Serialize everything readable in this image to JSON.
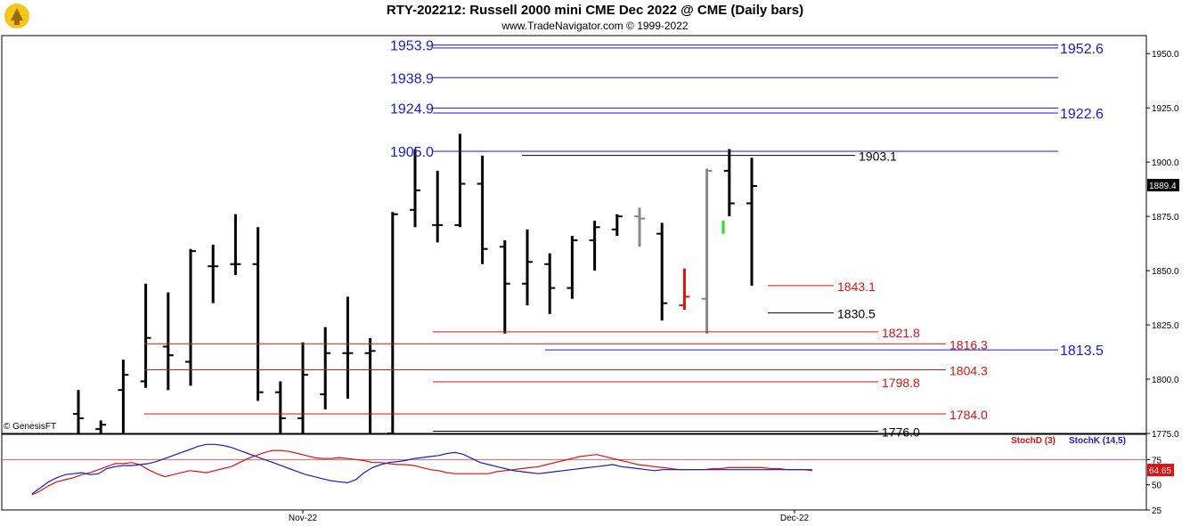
{
  "header": {
    "title": "RTY-202212:  Russell 2000 mini CME Dec 2022 @ CME  (Daily bars)",
    "subtitle": "www.TradeNavigator.com © 1999-2022",
    "copyright": "© GenesisFT"
  },
  "colors": {
    "up_bar": "#000000",
    "blue_levels": "#1a1acc",
    "red_levels": "#dd1111",
    "stoch_d": "#dd1111",
    "stoch_k": "#1a1acc",
    "flat_bar": "#888888",
    "highlight_green": "#22dd22"
  },
  "chart_data": [
    {
      "type": "ohlc",
      "title": "RTY-202212: Russell 2000 mini CME Dec 2022 @ CME (Daily bars)",
      "ylim": [
        1775,
        1955
      ],
      "yticks": [
        1775.0,
        1800.0,
        1825.0,
        1850.0,
        1875.0,
        1900.0,
        1925.0,
        1950.0
      ],
      "xlabels": [
        "Nov-22",
        "Dec-22"
      ],
      "last_price_label": "1889.4",
      "bars": [
        {
          "o": 1784,
          "h": 1795,
          "l": 1775,
          "c": 1782,
          "color": "black"
        },
        {
          "o": 1777,
          "h": 1781,
          "l": 1775,
          "c": 1779,
          "color": "black"
        },
        {
          "o": 1795,
          "h": 1809,
          "l": 1775,
          "c": 1802,
          "color": "black"
        },
        {
          "o": 1799,
          "h": 1844,
          "l": 1796,
          "c": 1819,
          "color": "black"
        },
        {
          "o": 1815,
          "h": 1840,
          "l": 1795,
          "c": 1811,
          "color": "black"
        },
        {
          "o": 1808,
          "h": 1860,
          "l": 1797,
          "c": 1859,
          "color": "black"
        },
        {
          "o": 1852,
          "h": 1862,
          "l": 1835,
          "c": 1852,
          "color": "black"
        },
        {
          "o": 1853,
          "h": 1876,
          "l": 1848,
          "c": 1853,
          "color": "black"
        },
        {
          "o": 1853,
          "h": 1870,
          "l": 1790,
          "c": 1794,
          "color": "black"
        },
        {
          "o": 1794,
          "h": 1799,
          "l": 1775,
          "c": 1782,
          "color": "black"
        },
        {
          "o": 1782,
          "h": 1817,
          "l": 1775,
          "c": 1802,
          "color": "black"
        },
        {
          "o": 1793,
          "h": 1824,
          "l": 1786,
          "c": 1812,
          "color": "black"
        },
        {
          "o": 1812,
          "h": 1838,
          "l": 1791,
          "c": 1812,
          "color": "black"
        },
        {
          "o": 1812,
          "h": 1819,
          "l": 1775,
          "c": 1813,
          "color": "black"
        },
        {
          "o": 1775,
          "h": 1877,
          "l": 1775,
          "c": 1876,
          "color": "black"
        },
        {
          "o": 1878,
          "h": 1906,
          "l": 1870,
          "c": 1887,
          "color": "black"
        },
        {
          "o": 1871,
          "h": 1896,
          "l": 1863,
          "c": 1871,
          "color": "black"
        },
        {
          "o": 1871,
          "h": 1913,
          "l": 1870,
          "c": 1890,
          "color": "black"
        },
        {
          "o": 1890,
          "h": 1903,
          "l": 1853,
          "c": 1860,
          "color": "black"
        },
        {
          "o": 1861,
          "h": 1864,
          "l": 1821,
          "c": 1844,
          "color": "black"
        },
        {
          "o": 1844,
          "h": 1869,
          "l": 1834,
          "c": 1854,
          "color": "black"
        },
        {
          "o": 1853,
          "h": 1858,
          "l": 1830,
          "c": 1842,
          "color": "black"
        },
        {
          "o": 1842,
          "h": 1866,
          "l": 1837,
          "c": 1864,
          "color": "black"
        },
        {
          "o": 1864,
          "h": 1873,
          "l": 1850,
          "c": 1870,
          "color": "black"
        },
        {
          "o": 1869,
          "h": 1876,
          "l": 1866,
          "c": 1875,
          "color": "black"
        },
        {
          "o": 1875,
          "h": 1879,
          "l": 1861,
          "c": 1874,
          "color": "gray"
        },
        {
          "o": 1867,
          "h": 1872,
          "l": 1827,
          "c": 1835,
          "color": "black"
        },
        {
          "o": 1834,
          "h": 1851,
          "l": 1832,
          "c": 1838,
          "color": "red"
        },
        {
          "o": 1837,
          "h": 1897,
          "l": 1821,
          "c": 1896,
          "color": "gray"
        },
        {
          "o": 1896,
          "h": 1906,
          "l": 1875,
          "c": 1881,
          "color": "black"
        },
        {
          "o": 1881,
          "h": 1902,
          "l": 1843,
          "c": 1889,
          "color": "black"
        }
      ],
      "levels": [
        {
          "value": 1953.9,
          "label": "1953.9",
          "color": "blue",
          "side": "left"
        },
        {
          "value": 1952.6,
          "label": "1952.6",
          "color": "blue",
          "side": "right"
        },
        {
          "value": 1938.9,
          "label": "1938.9",
          "color": "blue",
          "side": "left"
        },
        {
          "value": 1924.9,
          "label": "1924.9",
          "color": "blue",
          "side": "left"
        },
        {
          "value": 1922.6,
          "label": "1922.6",
          "color": "blue",
          "side": "right"
        },
        {
          "value": 1905.0,
          "label": "1905.0",
          "color": "blue",
          "side": "left"
        },
        {
          "value": 1903.1,
          "label": "1903.1",
          "color": "black",
          "side": "mid"
        },
        {
          "value": 1843.1,
          "label": "1843.1",
          "color": "red",
          "side": "mid"
        },
        {
          "value": 1830.5,
          "label": "1830.5",
          "color": "black",
          "side": "mid"
        },
        {
          "value": 1821.8,
          "label": "1821.8",
          "color": "red",
          "side": "mid"
        },
        {
          "value": 1816.3,
          "label": "1816.3",
          "color": "red",
          "side": "mid"
        },
        {
          "value": 1813.5,
          "label": "1813.5",
          "color": "blue",
          "side": "right"
        },
        {
          "value": 1804.3,
          "label": "1804.3",
          "color": "red",
          "side": "mid"
        },
        {
          "value": 1798.8,
          "label": "1798.8",
          "color": "red",
          "side": "mid"
        },
        {
          "value": 1784.0,
          "label": "1784.0",
          "color": "red",
          "side": "mid"
        },
        {
          "value": 1776.0,
          "label": "1776.0",
          "color": "black",
          "side": "mid"
        }
      ]
    },
    {
      "type": "line",
      "title": "Stochastic",
      "ylim": [
        25,
        100
      ],
      "yticks": [
        25,
        50,
        75
      ],
      "overbought": 75,
      "last_value_label": "64.65",
      "series": [
        {
          "name": "StochD (3)",
          "color": "red",
          "values": [
            40,
            44,
            49,
            53,
            55,
            57,
            60,
            62,
            65,
            68,
            71,
            71,
            72,
            70,
            65,
            61,
            58,
            60,
            62,
            64,
            63,
            62,
            64,
            66,
            68,
            72,
            76,
            79,
            82,
            84,
            84,
            83,
            81,
            79,
            77,
            76,
            76,
            77,
            76,
            75,
            74,
            72,
            72,
            71,
            70,
            70,
            69,
            67,
            65,
            64,
            62,
            61,
            61,
            61,
            61,
            61,
            63,
            64,
            65,
            66,
            67,
            68,
            70,
            72,
            74,
            76,
            78,
            79,
            80,
            78,
            76,
            74,
            72,
            70,
            69,
            68,
            67,
            66,
            65,
            65,
            65,
            65,
            66,
            66,
            67,
            67,
            67,
            67,
            67,
            66,
            66,
            65,
            65,
            65,
            64
          ]
        },
        {
          "name": "StochK (14,5)",
          "color": "blue",
          "values": [
            41,
            47,
            53,
            57,
            60,
            61,
            62,
            60,
            61,
            66,
            68,
            69,
            69,
            70,
            71,
            73,
            76,
            79,
            82,
            85,
            88,
            90,
            90,
            89,
            87,
            84,
            81,
            78,
            75,
            72,
            69,
            66,
            63,
            60,
            58,
            56,
            54,
            53,
            52,
            55,
            62,
            67,
            70,
            72,
            73,
            74,
            76,
            77,
            78,
            79,
            81,
            82,
            80,
            76,
            72,
            70,
            68,
            66,
            64,
            63,
            62,
            61,
            62,
            63,
            64,
            65,
            66,
            67,
            68,
            69,
            70,
            68,
            67,
            66,
            65,
            64,
            65,
            65,
            65,
            65,
            65,
            65,
            65,
            65,
            65,
            65,
            65,
            65,
            65,
            65,
            65,
            65,
            65,
            65,
            65
          ]
        }
      ]
    }
  ]
}
